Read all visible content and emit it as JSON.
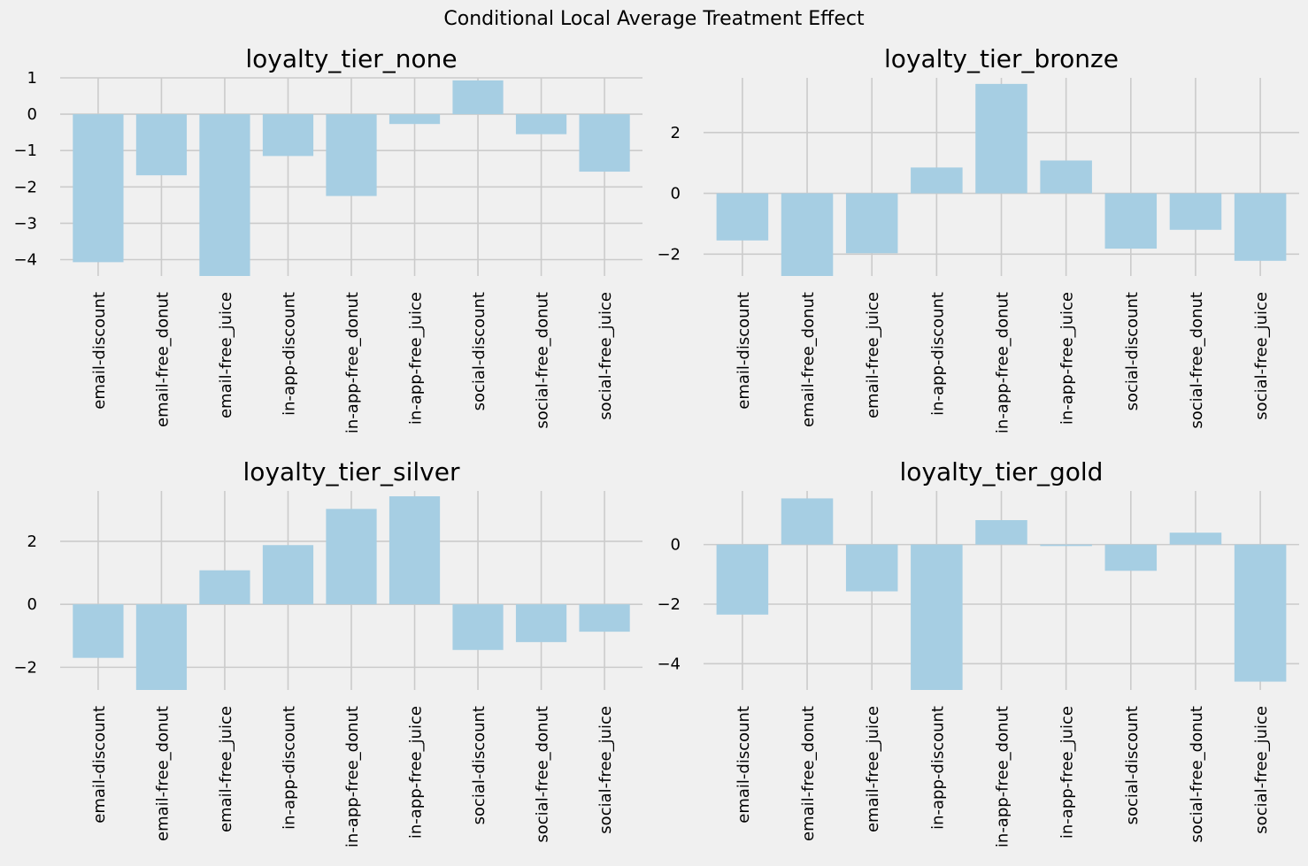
{
  "figure": {
    "suptitle": "Conditional Local Average Treatment Effect"
  },
  "colors": {
    "background": "#f0f0f0",
    "bar": "#a6cee3",
    "grid": "#cbcbcb"
  },
  "chart_data": [
    {
      "type": "bar",
      "title": "loyalty_tier_none",
      "xlabel": "",
      "ylabel": "",
      "categories": [
        "email-discount",
        "email-free_donut",
        "email-free_juice",
        "in-app-discount",
        "in-app-free_donut",
        "in-app-free_juice",
        "social-discount",
        "social-free_donut",
        "social-free_juice"
      ],
      "values": [
        -4.07,
        -1.68,
        -4.45,
        -1.15,
        -2.25,
        -0.27,
        0.93,
        -0.55,
        -1.58
      ],
      "ylim": [
        -4.45,
        1.0
      ],
      "yticks": [
        1,
        0,
        -1,
        -2,
        -3,
        -4
      ],
      "yticklabels": [
        "1",
        "0",
        "−1",
        "−2",
        "−3",
        "−4"
      ],
      "grid": true
    },
    {
      "type": "bar",
      "title": "loyalty_tier_bronze",
      "xlabel": "",
      "ylabel": "",
      "categories": [
        "email-discount",
        "email-free_donut",
        "email-free_juice",
        "in-app-discount",
        "in-app-free_donut",
        "in-app-free_juice",
        "social-discount",
        "social-free_donut",
        "social-free_juice"
      ],
      "values": [
        -1.55,
        -2.72,
        -1.97,
        0.85,
        3.6,
        1.08,
        -1.82,
        -1.2,
        -2.22
      ],
      "ylim": [
        -2.72,
        3.8
      ],
      "yticks": [
        2,
        0,
        -2
      ],
      "yticklabels": [
        "2",
        "0",
        "−2"
      ],
      "grid": true
    },
    {
      "type": "bar",
      "title": "loyalty_tier_silver",
      "xlabel": "",
      "ylabel": "",
      "categories": [
        "email-discount",
        "email-free_donut",
        "email-free_juice",
        "in-app-discount",
        "in-app-free_donut",
        "in-app-free_juice",
        "social-discount",
        "social-free_donut",
        "social-free_juice"
      ],
      "values": [
        -1.7,
        -2.72,
        1.08,
        1.88,
        3.03,
        3.43,
        -1.45,
        -1.2,
        -0.87
      ],
      "ylim": [
        -2.72,
        3.6
      ],
      "yticks": [
        2,
        0,
        -2
      ],
      "yticklabels": [
        "2",
        "0",
        "−2"
      ],
      "grid": true
    },
    {
      "type": "bar",
      "title": "loyalty_tier_gold",
      "xlabel": "",
      "ylabel": "",
      "categories": [
        "email-discount",
        "email-free_donut",
        "email-free_juice",
        "in-app-discount",
        "in-app-free_donut",
        "in-app-free_juice",
        "social-discount",
        "social-free_donut",
        "social-free_juice"
      ],
      "values": [
        -2.35,
        1.55,
        -1.57,
        -4.88,
        0.82,
        -0.05,
        -0.88,
        0.4,
        -4.6
      ],
      "ylim": [
        -4.88,
        1.8
      ],
      "yticks": [
        0,
        -2,
        -4
      ],
      "yticklabels": [
        "0",
        "−2",
        "−4"
      ],
      "grid": true
    }
  ]
}
